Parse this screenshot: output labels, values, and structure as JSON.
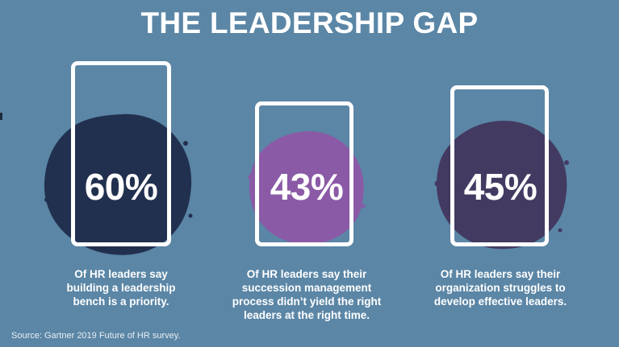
{
  "title": "THE LEADERSHIP GAP",
  "stats": [
    {
      "value": "60%",
      "color": "#22304f",
      "caption_lines": [
        "Of HR leaders say",
        "building a leadership",
        "bench is a priority."
      ]
    },
    {
      "value": "43%",
      "color": "#8a5aa6",
      "caption_lines": [
        "Of HR leaders say their",
        "succession management",
        "process didn’t yield the right",
        "leaders at the right time."
      ]
    },
    {
      "value": "45%",
      "color": "#433a62",
      "caption_lines": [
        "Of HR leaders say their",
        "organization struggles to",
        "develop effective leaders."
      ]
    }
  ],
  "source": "Source: Gartner 2019 Future of HR survey.",
  "colors": {
    "background": "#5b86a6",
    "frame": "#ffffff",
    "text": "#ffffff"
  }
}
